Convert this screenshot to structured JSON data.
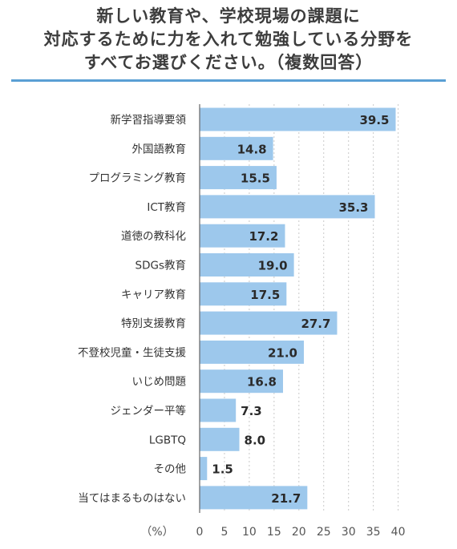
{
  "title_lines": [
    "新しい教育や、学校現場の課題に",
    "対応するために力を入れて勉強している分野を",
    "すべてお選びください。（複数回答）"
  ],
  "colors": {
    "bar": "#9dc8ec",
    "divider": "#5a9fd4",
    "grid": "#c9c9c9",
    "text": "#333333"
  },
  "chart_data": {
    "type": "bar",
    "orientation": "horizontal",
    "categories": [
      "新学習指導要領",
      "外国語教育",
      "プログラミング教育",
      "ICT教育",
      "道徳の教科化",
      "SDGs教育",
      "キャリア教育",
      "特別支援教育",
      "不登校児童・生徒支援",
      "いじめ問題",
      "ジェンダー平等",
      "LGBTQ",
      "その他",
      "当てはまるものはない"
    ],
    "values": [
      39.5,
      14.8,
      15.5,
      35.3,
      17.2,
      19.0,
      17.5,
      27.7,
      21.0,
      16.8,
      7.3,
      8.0,
      1.5,
      21.7
    ],
    "value_labels": [
      "39.5",
      "14.8",
      "15.5",
      "35.3",
      "17.2",
      "19.0",
      "17.5",
      "27.7",
      "21.0",
      "16.8",
      "7.3",
      "8.0",
      "1.5",
      "21.7"
    ],
    "xlim": [
      0,
      40
    ],
    "x_ticks": [
      "0",
      "5",
      "10",
      "15",
      "20",
      "25",
      "30",
      "35",
      "40"
    ],
    "x_unit_label": "（%）",
    "grid": "vertical dashed"
  }
}
